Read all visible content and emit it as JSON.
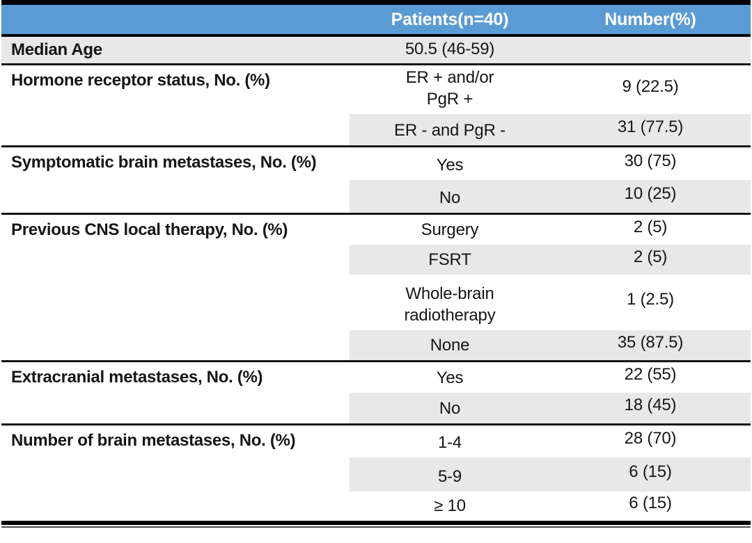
{
  "colors": {
    "header_bg": "#5B9BD5",
    "header_text": "#FFFFFF",
    "row_shade": "#E9E8E8",
    "rule": "#141414",
    "text": "#161616"
  },
  "table": {
    "header": {
      "patients": "Patients(n=40)",
      "number": "Number(%)"
    },
    "median": {
      "label": "Median Age",
      "value": "50.5 (46-59)",
      "number": ""
    },
    "sections": [
      {
        "label": "Hormone receptor status, No. (%)",
        "subrows": [
          {
            "value": "ER + and/or\nPgR +",
            "number": "9 (22.5)"
          },
          {
            "value": "ER - and PgR -",
            "number": "31 (77.5)"
          }
        ]
      },
      {
        "label": "Symptomatic brain metastases, No. (%)",
        "subrows": [
          {
            "value": "Yes",
            "number": "30 (75)"
          },
          {
            "value": "No",
            "number": "10 (25)"
          }
        ]
      },
      {
        "label": "Previous CNS local therapy, No. (%)",
        "subrows": [
          {
            "value": "Surgery",
            "number": "2 (5)"
          },
          {
            "value": "FSRT",
            "number": "2 (5)"
          },
          {
            "value": "Whole-brain\nradiotherapy",
            "number": "1 (2.5)"
          },
          {
            "value": "None",
            "number": "35 (87.5)"
          }
        ]
      },
      {
        "label": "Extracranial metastases, No. (%)",
        "subrows": [
          {
            "value": "Yes",
            "number": "22 (55)"
          },
          {
            "value": "No",
            "number": "18 (45)"
          }
        ]
      },
      {
        "label": "Number of brain metastases, No. (%)",
        "subrows": [
          {
            "value": "1-4",
            "number": "28 (70)"
          },
          {
            "value": "5-9",
            "number": "6 (15)"
          },
          {
            "value": "≥ 10",
            "number": "6 (15)"
          }
        ]
      }
    ]
  }
}
